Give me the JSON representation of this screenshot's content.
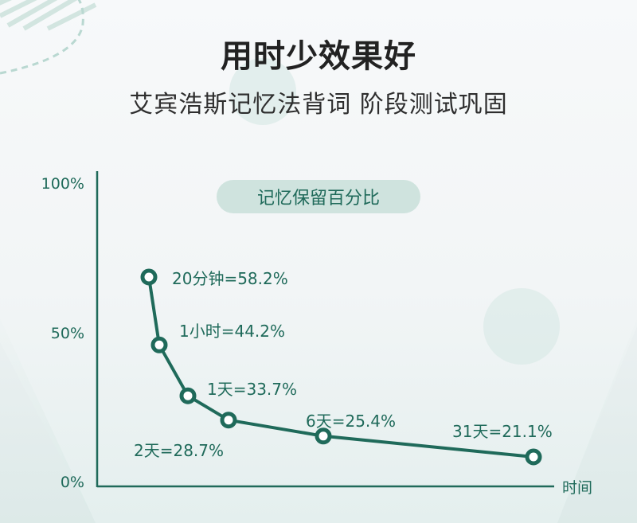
{
  "header": {
    "title": "用时少效果好",
    "subtitle": "艾宾浩斯记忆法背词 阶段测试巩固"
  },
  "colors": {
    "accent": "#1f6a5a",
    "pill": "#cfe3de"
  },
  "chart_data": {
    "type": "line",
    "title": "记忆保留百分比",
    "xlabel": "时间",
    "ylabel": "",
    "y_ticks": [
      "100%",
      "50%",
      "0%"
    ],
    "ylim": [
      0,
      100
    ],
    "grid": false,
    "points": [
      {
        "label": "20分钟=58.2%",
        "value": 58.2
      },
      {
        "label": "1小时=44.2%",
        "value": 44.2
      },
      {
        "label": "1天=33.7%",
        "value": 33.7
      },
      {
        "label": "2天=28.7%",
        "value": 28.7
      },
      {
        "label": "6天=25.4%",
        "value": 25.4
      },
      {
        "label": "31天=21.1%",
        "value": 21.1
      }
    ]
  }
}
